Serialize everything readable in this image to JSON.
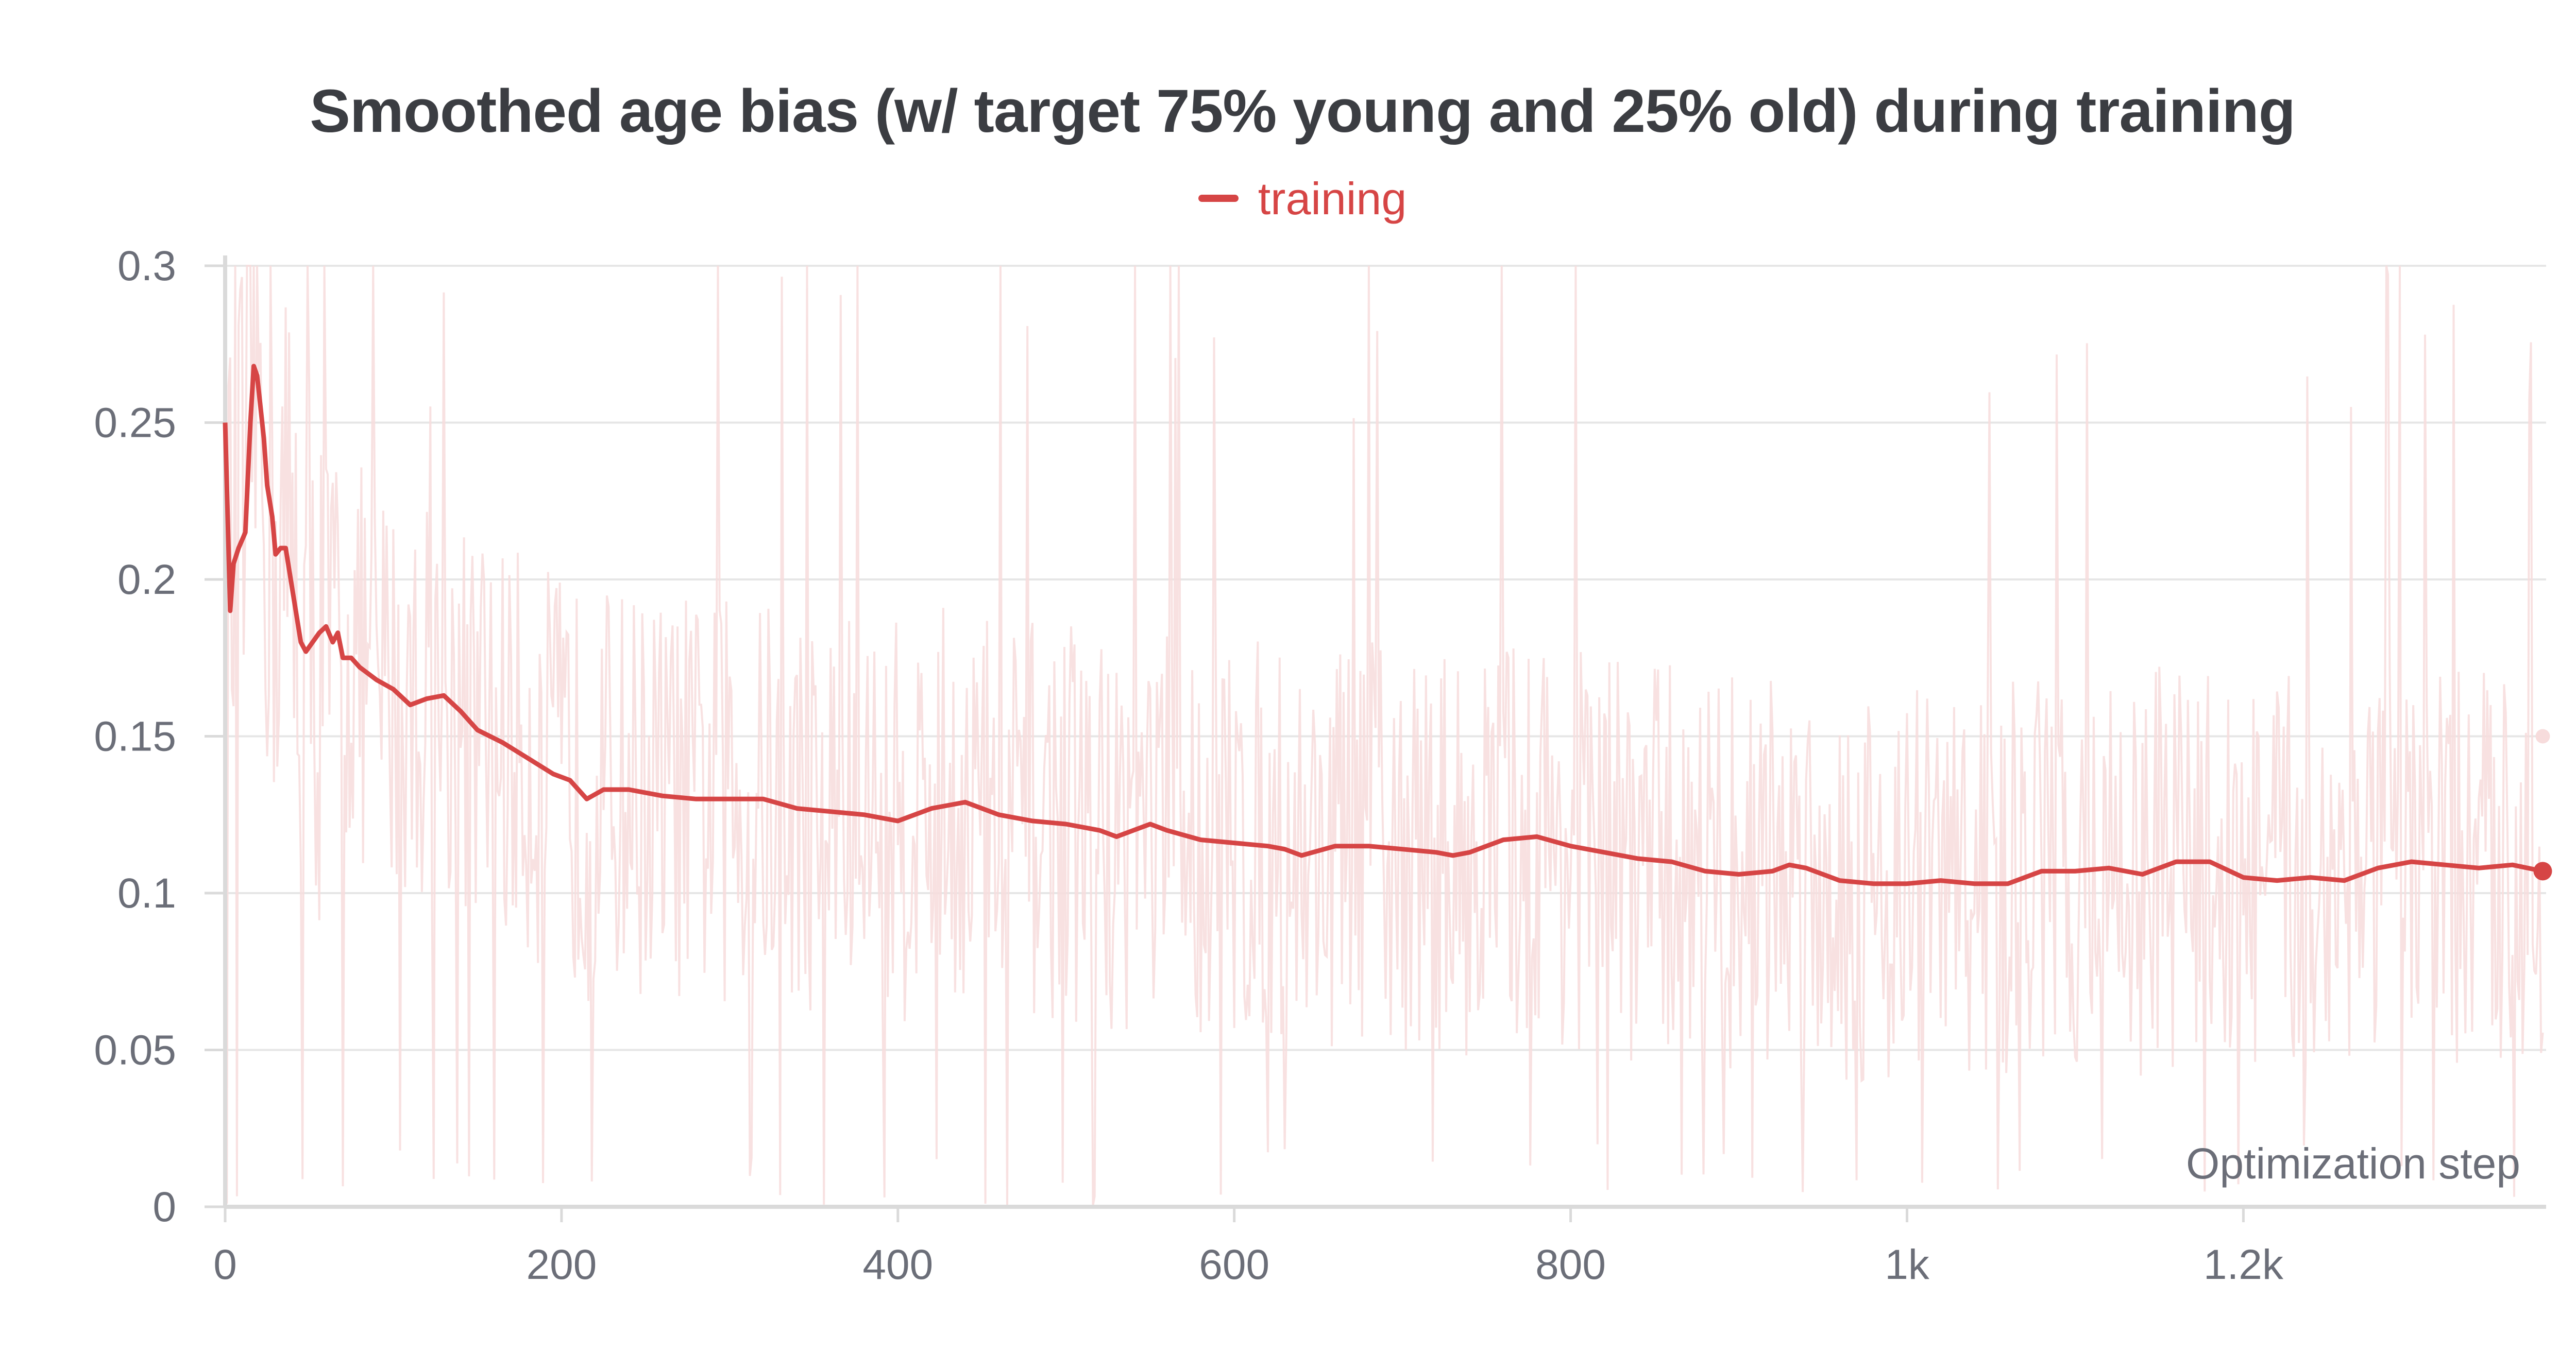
{
  "chart_data": {
    "type": "line",
    "title": "Smoothed age bias (w/ target 75% young and 25% old) during training",
    "xlabel": "Optimization step",
    "ylabel": "",
    "xlim": [
      0,
      1380
    ],
    "ylim": [
      0,
      0.3
    ],
    "x_ticks": [
      0,
      200,
      400,
      600,
      800,
      1000,
      1200
    ],
    "x_tick_labels": [
      "0",
      "200",
      "400",
      "600",
      "800",
      "1k",
      "1.2k"
    ],
    "y_ticks": [
      0,
      0.05,
      0.1,
      0.15,
      0.2,
      0.25,
      0.3
    ],
    "y_tick_labels": [
      "0",
      "0.05",
      "0.1",
      "0.15",
      "0.2",
      "0.25",
      "0.3"
    ],
    "grid": true,
    "legend_placement": "top-center",
    "colors": {
      "series": "#d64545",
      "raw": "#f7dcdc",
      "grid": "#e6e6e6",
      "axis": "#dadada",
      "text": "#6b6e78",
      "title": "#3b3d42"
    },
    "series": [
      {
        "name": "training",
        "smoothed": true,
        "x": [
          0,
          3,
          5,
          8,
          12,
          15,
          17,
          19,
          21,
          23,
          25,
          28,
          30,
          33,
          36,
          39,
          42,
          45,
          48,
          52,
          56,
          60,
          64,
          67,
          70,
          75,
          80,
          85,
          90,
          100,
          110,
          120,
          130,
          140,
          150,
          165,
          180,
          195,
          205,
          215,
          225,
          240,
          260,
          280,
          300,
          320,
          340,
          360,
          380,
          400,
          420,
          430,
          440,
          460,
          480,
          500,
          520,
          530,
          540,
          550,
          560,
          580,
          600,
          620,
          630,
          640,
          660,
          680,
          700,
          720,
          730,
          740,
          760,
          780,
          800,
          820,
          840,
          860,
          880,
          900,
          920,
          930,
          940,
          960,
          980,
          1000,
          1020,
          1040,
          1060,
          1080,
          1100,
          1120,
          1140,
          1160,
          1180,
          1200,
          1220,
          1240,
          1260,
          1280,
          1300,
          1320,
          1340,
          1360,
          1378
        ],
        "values": [
          0.25,
          0.19,
          0.205,
          0.21,
          0.215,
          0.25,
          0.268,
          0.265,
          0.255,
          0.245,
          0.23,
          0.22,
          0.208,
          0.21,
          0.21,
          0.2,
          0.19,
          0.18,
          0.177,
          0.18,
          0.183,
          0.185,
          0.18,
          0.183,
          0.175,
          0.175,
          0.172,
          0.17,
          0.168,
          0.165,
          0.16,
          0.162,
          0.163,
          0.158,
          0.152,
          0.148,
          0.143,
          0.138,
          0.136,
          0.13,
          0.133,
          0.133,
          0.131,
          0.13,
          0.13,
          0.13,
          0.127,
          0.126,
          0.125,
          0.123,
          0.127,
          0.128,
          0.129,
          0.125,
          0.123,
          0.122,
          0.12,
          0.118,
          0.12,
          0.122,
          0.12,
          0.117,
          0.116,
          0.115,
          0.114,
          0.112,
          0.115,
          0.115,
          0.114,
          0.113,
          0.112,
          0.113,
          0.117,
          0.118,
          0.115,
          0.113,
          0.111,
          0.11,
          0.107,
          0.106,
          0.107,
          0.109,
          0.108,
          0.104,
          0.103,
          0.103,
          0.104,
          0.103,
          0.103,
          0.107,
          0.107,
          0.108,
          0.106,
          0.11,
          0.11,
          0.105,
          0.104,
          0.105,
          0.104,
          0.108,
          0.11,
          0.109,
          0.108,
          0.109,
          0.107
        ]
      }
    ],
    "raw_series_indicator": {
      "last_value": 0.15
    }
  }
}
